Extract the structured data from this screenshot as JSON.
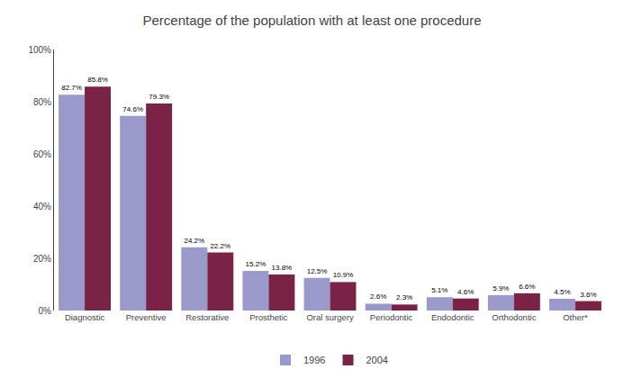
{
  "chart_data": {
    "type": "bar",
    "title": "Percentage of the population with at least one procedure",
    "categories": [
      "Diagnostic",
      "Preventive",
      "Restorative",
      "Prosthetic",
      "Oral surgery",
      "Periodontic",
      "Endodontic",
      "Orthodontic",
      "Other*"
    ],
    "series": [
      {
        "name": "1996",
        "color": "#9999CC",
        "values": [
          82.7,
          74.6,
          24.2,
          15.2,
          12.5,
          2.6,
          5.1,
          5.9,
          4.5
        ],
        "value_labels": [
          "82.7%",
          "74.6%",
          "24.2%",
          "15.2%",
          "12.5%",
          "2.6%",
          "5.1%",
          "5.9%",
          "4.5%"
        ]
      },
      {
        "name": "2004",
        "color": "#7B2346",
        "values": [
          85.8,
          79.3,
          22.2,
          13.8,
          10.9,
          2.3,
          4.6,
          6.6,
          3.6
        ],
        "value_labels": [
          "85.8%",
          "79.3%",
          "22.2%",
          "13.8%",
          "10.9%",
          "2.3%",
          "4.6%",
          "6.6%",
          "3.6%"
        ]
      }
    ],
    "ylim": [
      0,
      100
    ],
    "yticks": [
      {
        "value": 0,
        "label": "0%"
      },
      {
        "value": 20,
        "label": "20%"
      },
      {
        "value": 40,
        "label": "40%"
      },
      {
        "value": 60,
        "label": "60%"
      },
      {
        "value": 80,
        "label": "80%"
      },
      {
        "value": 100,
        "label": "100%"
      }
    ],
    "grid": false,
    "legend": "bottom",
    "data_labels": true
  }
}
